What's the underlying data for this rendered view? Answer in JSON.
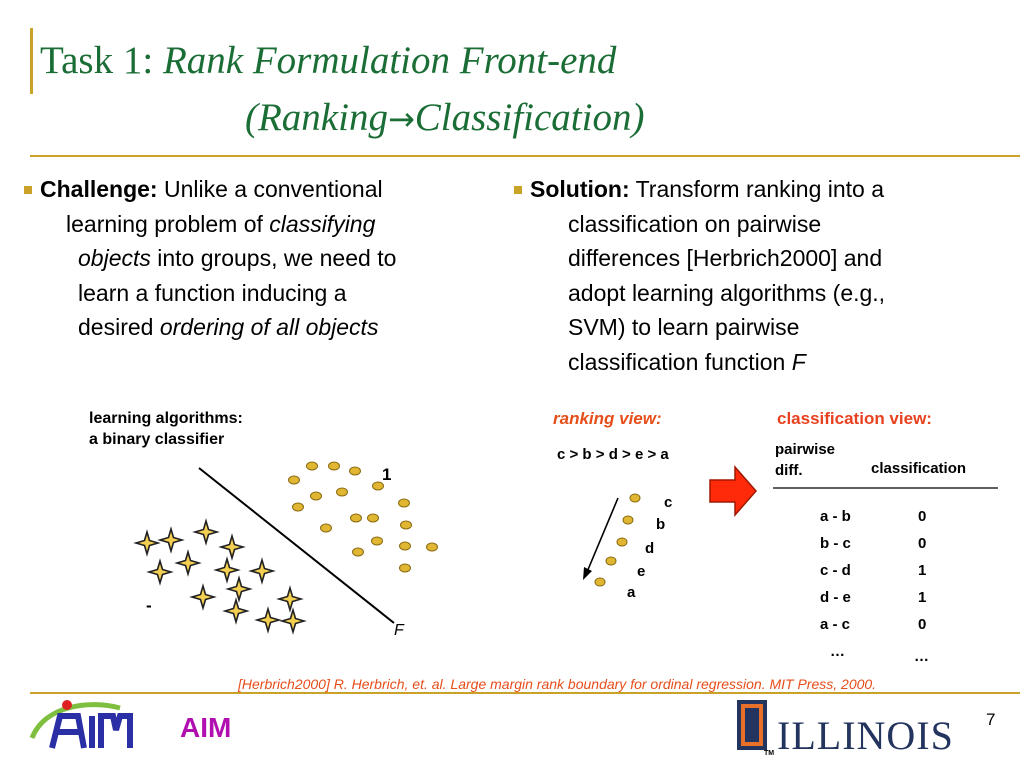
{
  "slide": {
    "title_prefix": "Task 1: ",
    "title_italic": "Rank Formulation Front-end",
    "title_line2_part1": "(Ranking",
    "title_line2_arrow": "→",
    "title_line2_part2": "Classification)"
  },
  "challenge": {
    "label": "Challenge:",
    "t1": " Unlike a conventional",
    "t2": "learning problem of ",
    "t2_i": "classifying",
    "t3_i": "objects",
    "t3": " into groups, we need to",
    "t4": "learn a function inducing a",
    "t5": "desired ",
    "t5_i": "ordering of all objects"
  },
  "solution": {
    "label": "Solution:",
    "t1": " Transform ranking into a",
    "t2": "classification on pairwise",
    "t3": "differences  [Herbrich2000] and",
    "t4": "adopt learning algorithms (e.g.,",
    "t5": "SVM) to learn pairwise",
    "t6": "classification function ",
    "t6_i": "F"
  },
  "classifier_figure": {
    "label_line1": "learning algorithms:",
    "label_line2": "a binary classifier",
    "positive_label": "1",
    "negative_label": "-",
    "function_label": "F"
  },
  "ranking_view": {
    "title": "ranking view:",
    "order_text": "c > b > d > e > a",
    "items": [
      "c",
      "b",
      "d",
      "e",
      "a"
    ]
  },
  "classification_view": {
    "title": "classification view:",
    "col1_header_line1": "pairwise",
    "col1_header_line2": "diff.",
    "col2_header": "classification",
    "rows": [
      {
        "pair": "a - b",
        "cls": "0"
      },
      {
        "pair": "b - c",
        "cls": "0"
      },
      {
        "pair": "c - d",
        "cls": "1"
      },
      {
        "pair": "d - e",
        "cls": "1"
      },
      {
        "pair": "a - c",
        "cls": "0"
      },
      {
        "pair": "…",
        "cls": "…"
      }
    ]
  },
  "footer": {
    "reference": "[Herbrich2000] R. Herbrich, et. al. Large margin rank boundary for ordinal regression. MIT Press, 2000.",
    "aim_label": "AIM",
    "page_number": "7",
    "illinois_wordmark": "ILLINOIS",
    "illinois_block_letter": "I",
    "tm_mark": "TM"
  },
  "colors": {
    "title_green": "#1b6d36",
    "gold_rule": "#c9a227",
    "accent_orange": "#e64e1a",
    "aim_magenta": "#b010b0",
    "illinois_navy": "#23355e",
    "illinois_orange": "#e8702a"
  }
}
